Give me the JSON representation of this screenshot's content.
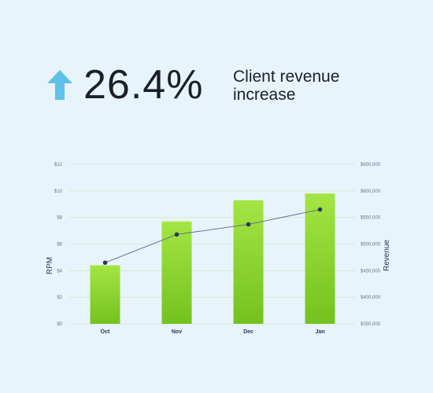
{
  "headline": {
    "value": "26.4%",
    "caption": "Client revenue increase",
    "arrow_icon": "arrow-up-icon",
    "arrow_color": "#5fc1e8"
  },
  "chart_data": {
    "type": "bar",
    "categories": [
      "Oct",
      "Nov",
      "Dec",
      "Jan"
    ],
    "series": [
      {
        "axis": "left",
        "type": "bar",
        "values": [
          4.4,
          7.7,
          9.3,
          9.8
        ],
        "color_top": "#a4e543",
        "color_bottom": "#74c21f"
      },
      {
        "axis": "right",
        "type": "line",
        "values": [
          465000,
          518000,
          537000,
          565000
        ],
        "color": "#5a6890",
        "marker_color": "#2b3561"
      }
    ],
    "ylabel": "RPM",
    "y2label": "Revenue",
    "ylim": [
      0,
      12
    ],
    "y2lim": [
      350000,
      650000
    ],
    "yticks": [
      "$0",
      "$2",
      "$4",
      "$6",
      "$8",
      "$10",
      "$12"
    ],
    "y2ticks": [
      "$350,000",
      "$400,000",
      "$450,000",
      "$500,000",
      "$550,000",
      "$600,000",
      "$650,000"
    ],
    "grid": true
  }
}
